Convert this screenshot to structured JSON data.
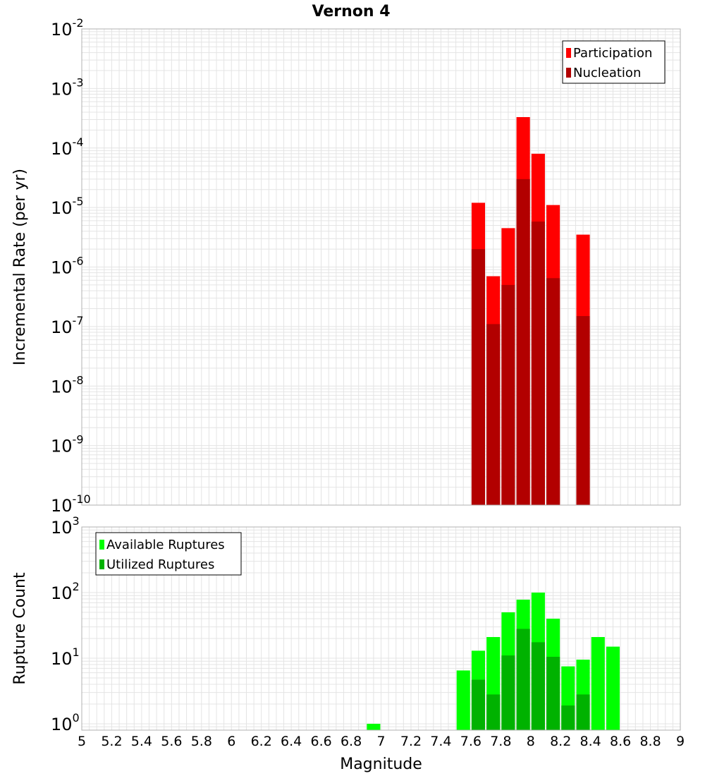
{
  "chart_data": [
    {
      "type": "bar",
      "title": "Vernon 4",
      "ylabel": "Incremental Rate (per yr)",
      "xlabel": "",
      "yscale": "log",
      "ylim": [
        1e-10,
        0.01
      ],
      "xlim": [
        5,
        9
      ],
      "ytick_exponents": [
        "-10",
        "-9",
        "-8",
        "-7",
        "-6",
        "-5",
        "-4",
        "-3",
        "-2"
      ],
      "legend_placement": "top-right",
      "series": [
        {
          "name": "Participation",
          "color": "#ff0000",
          "x": [
            7.65,
            7.75,
            7.85,
            7.95,
            8.05,
            8.15,
            8.35
          ],
          "values": [
            1.2e-05,
            7e-07,
            4.5e-06,
            0.00033,
            8e-05,
            1.1e-05,
            3.5e-06
          ]
        },
        {
          "name": "Nucleation",
          "color": "#b20000",
          "x": [
            7.65,
            7.75,
            7.85,
            7.95,
            8.05,
            8.15,
            8.35
          ],
          "values": [
            2e-06,
            1.1e-07,
            5e-07,
            3e-05,
            5.8e-06,
            6.5e-07,
            1.5e-07
          ]
        }
      ]
    },
    {
      "type": "bar",
      "title": "",
      "xlabel": "Magnitude",
      "ylabel": "Rupture Count",
      "yscale": "log",
      "ylim": [
        0.8,
        1000
      ],
      "xlim": [
        5,
        9
      ],
      "ytick_exponents": [
        "0",
        "1",
        "2",
        "3"
      ],
      "xticks": [
        "5",
        "5.2",
        "5.4",
        "5.6",
        "5.8",
        "6",
        "6.2",
        "6.4",
        "6.6",
        "6.8",
        "7",
        "7.2",
        "7.4",
        "7.6",
        "7.8",
        "8",
        "8.2",
        "8.4",
        "8.6",
        "8.8",
        "9"
      ],
      "legend_placement": "top-left",
      "series": [
        {
          "name": "Available Ruptures",
          "color": "#00ff00",
          "x": [
            6.95,
            7.55,
            7.65,
            7.75,
            7.85,
            7.95,
            8.05,
            8.15,
            8.25,
            8.35,
            8.45,
            8.55
          ],
          "values": [
            1,
            6.5,
            13,
            21,
            50,
            78,
            100,
            40,
            7.5,
            9.5,
            21,
            15
          ]
        },
        {
          "name": "Utilized Ruptures",
          "color": "#00b200",
          "x": [
            7.65,
            7.75,
            7.85,
            7.95,
            8.05,
            8.15,
            8.25,
            8.35
          ],
          "values": [
            4.7,
            2.8,
            11,
            28,
            17.5,
            10.5,
            1.9,
            2.8
          ]
        }
      ]
    }
  ]
}
